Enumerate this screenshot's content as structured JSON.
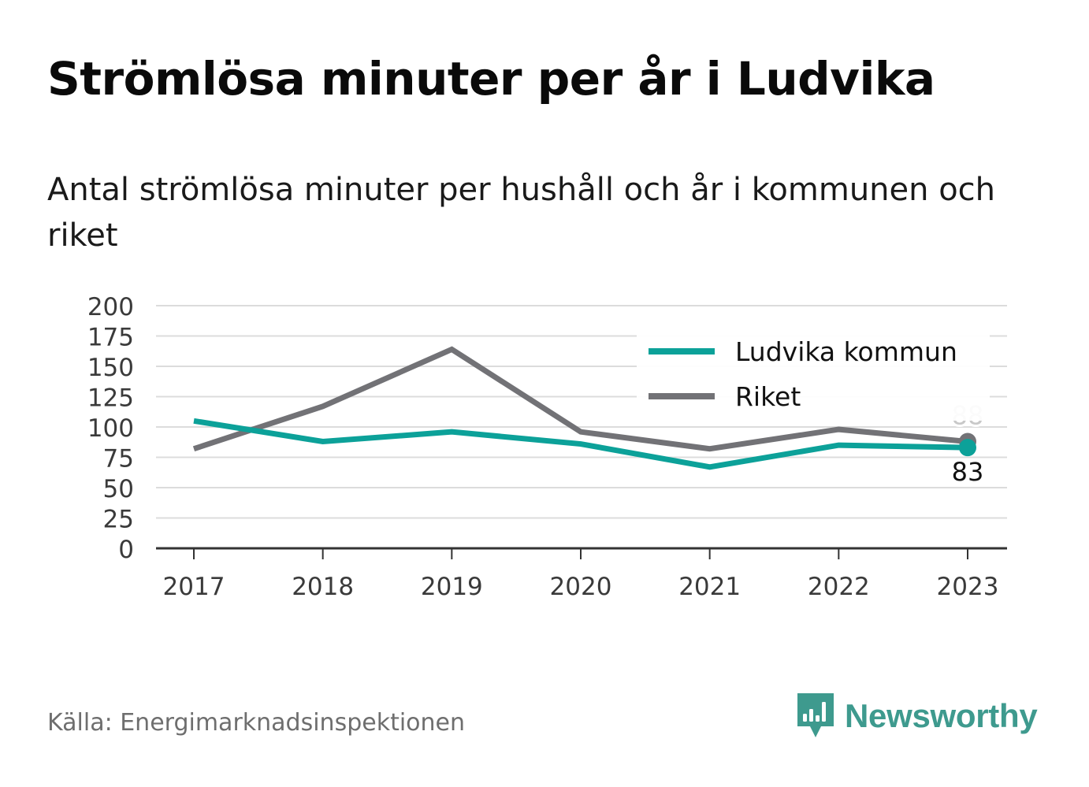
{
  "header": {
    "title": "Strömlösa minuter per år i Ludvika",
    "subtitle": "Antal strömlösa minuter per hushåll och år i kommunen och riket"
  },
  "footer": {
    "source": "Källa: Energimarknadsinspektionen",
    "brand": "Newsworthy",
    "brand_icon": "bar-chart-icon"
  },
  "colors": {
    "ludvika": "#0ca199",
    "riket": "#727276",
    "brand": "#3e9a8e",
    "grid": "#dcdcdc",
    "axis": "#333333"
  },
  "chart_data": {
    "type": "line",
    "categories": [
      "2017",
      "2018",
      "2019",
      "2020",
      "2021",
      "2022",
      "2023"
    ],
    "series": [
      {
        "name": "Ludvika kommun",
        "values": [
          105,
          88,
          96,
          86,
          67,
          85,
          83
        ]
      },
      {
        "name": "Riket",
        "values": [
          82,
          117,
          164,
          96,
          82,
          98,
          88
        ]
      }
    ],
    "end_labels": {
      "Ludvika kommun": "83",
      "Riket": "88"
    },
    "yticks": [
      "0",
      "25",
      "50",
      "75",
      "100",
      "125",
      "150",
      "175",
      "200"
    ],
    "ylim": [
      0,
      200
    ],
    "title": "",
    "xlabel": "",
    "ylabel": "",
    "grid": true,
    "legend_position": "top-right"
  }
}
